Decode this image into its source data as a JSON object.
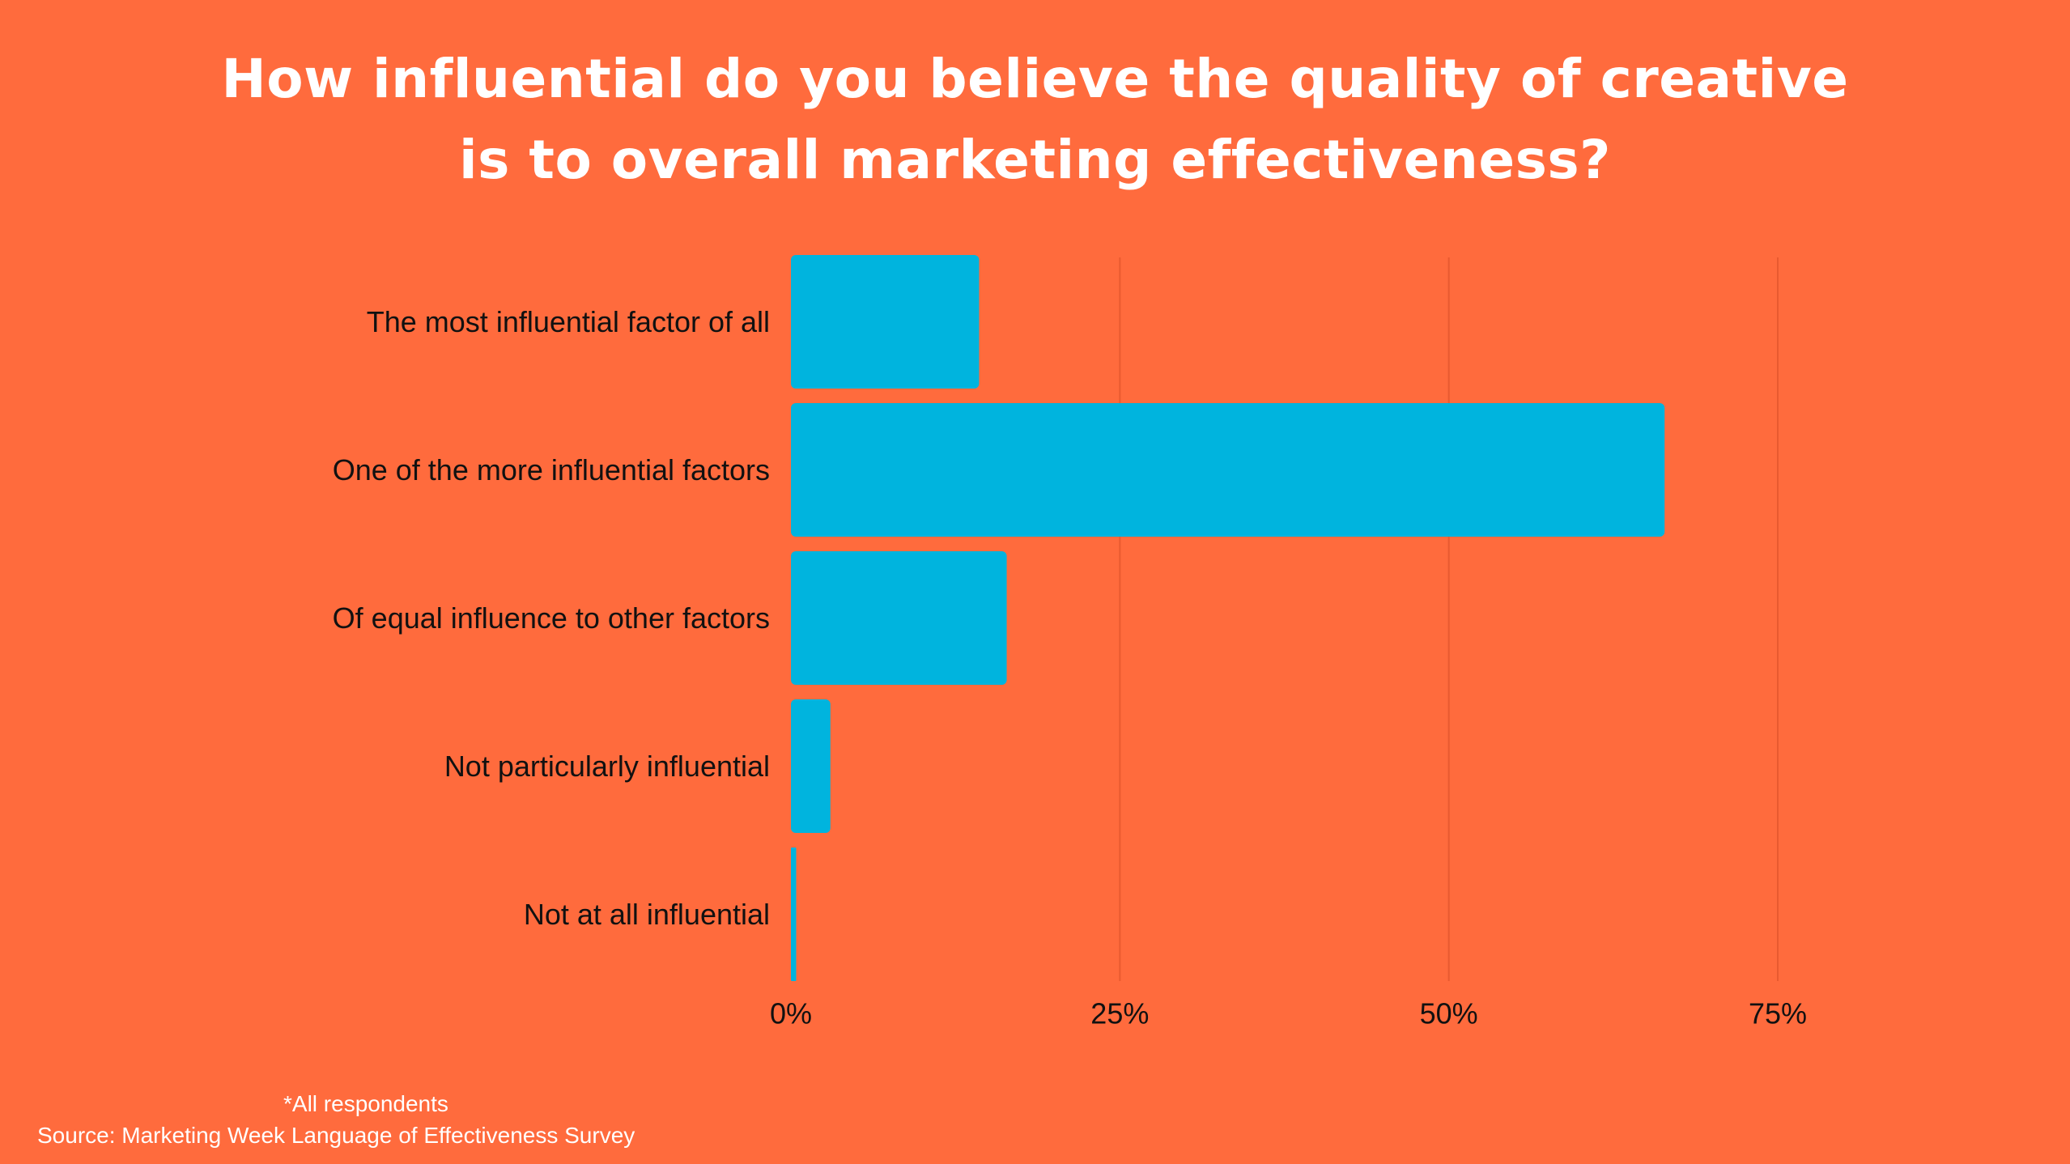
{
  "colors": {
    "background": "#FF6B3D",
    "bar": "#00B4DE",
    "gridline": "#E85A30",
    "title_text": "#ffffff",
    "label_text": "#111111"
  },
  "chart_data": {
    "type": "bar",
    "orientation": "horizontal",
    "title": "How influential do you believe the quality of creative is to overall marketing effectiveness?",
    "title_lines": [
      "How influential do you believe the quality of creative",
      "is to overall marketing effectiveness?"
    ],
    "categories": [
      "The most influential factor of all",
      "One of the more influential factors",
      "Of equal influence to other factors",
      "Not particularly influential",
      "Not at all influential"
    ],
    "values": [
      14.3,
      66.4,
      16.4,
      3.0,
      0.4
    ],
    "unit": "%",
    "xlim": [
      0,
      75
    ],
    "xticks": [
      0,
      25,
      50,
      75
    ],
    "xtick_labels": [
      "0%",
      "25%",
      "50%",
      "75%"
    ],
    "grid": "vertical",
    "legend": "none",
    "xlabel": "",
    "ylabel": ""
  },
  "footnote": "*All respondents",
  "source": "Source: Marketing Week Language of Effectiveness Survey"
}
